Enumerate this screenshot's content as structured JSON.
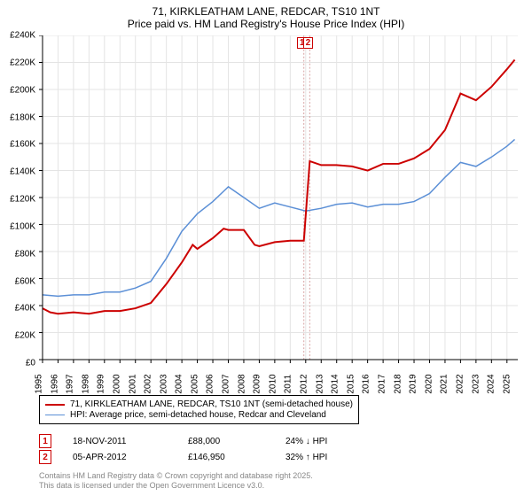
{
  "title": {
    "line1": "71, KIRKLEATHAM LANE, REDCAR, TS10 1NT",
    "line2": "Price paid vs. HM Land Registry's House Price Index (HPI)"
  },
  "chart": {
    "type": "line",
    "background_color": "#ffffff",
    "grid_color": "#e4e4e4",
    "axis_color": "#000000",
    "tick_fontsize": 10,
    "ylim": [
      0,
      240000
    ],
    "ytick_step": 20000,
    "ytick_format_prefix": "£",
    "ytick_format_suffix": "K",
    "xlim": [
      1995,
      2025.7
    ],
    "xticks": [
      1995,
      1996,
      1997,
      1998,
      1999,
      2000,
      2001,
      2002,
      2003,
      2004,
      2005,
      2006,
      2007,
      2008,
      2009,
      2010,
      2011,
      2012,
      2013,
      2014,
      2015,
      2016,
      2017,
      2018,
      2019,
      2020,
      2021,
      2022,
      2023,
      2024,
      2025
    ],
    "sale_marker_color": "#cc0000",
    "sale_marker_line_color": "#d6a0a0",
    "sale_marker_dash": "2,2",
    "series": [
      {
        "name": "price_paid",
        "legend": "71, KIRKLEATHAM LANE, REDCAR, TS10 1NT (semi-detached house)",
        "color": "#cc0000",
        "line_width": 2,
        "x": [
          1995,
          1995.5,
          1996,
          1997,
          1998,
          1999,
          2000,
          2001,
          2002,
          2003,
          2004,
          2004.7,
          2005,
          2006,
          2006.7,
          2007,
          2008,
          2008.7,
          2009,
          2010,
          2011,
          2011.88,
          2012.26,
          2013,
          2014,
          2015,
          2016,
          2017,
          2018,
          2019,
          2020,
          2021,
          2022,
          2023,
          2024,
          2025,
          2025.5
        ],
        "y": [
          38000,
          35000,
          34000,
          35000,
          34000,
          36000,
          36000,
          38000,
          42000,
          56000,
          72000,
          85000,
          82000,
          90000,
          97000,
          96000,
          96000,
          85000,
          84000,
          87000,
          88000,
          88000,
          146950,
          144000,
          144000,
          143000,
          140000,
          145000,
          145000,
          149000,
          156000,
          170000,
          197000,
          192000,
          202000,
          215000,
          222000
        ]
      },
      {
        "name": "hpi",
        "legend": "HPI: Average price, semi-detached house, Redcar and Cleveland",
        "color": "#5b8fd6",
        "line_width": 1.5,
        "x": [
          1995,
          1996,
          1997,
          1998,
          1999,
          2000,
          2001,
          2002,
          2003,
          2004,
          2005,
          2006,
          2007,
          2008,
          2009,
          2010,
          2011,
          2012,
          2013,
          2014,
          2015,
          2016,
          2017,
          2018,
          2019,
          2020,
          2021,
          2022,
          2023,
          2024,
          2025,
          2025.5
        ],
        "y": [
          48000,
          47000,
          48000,
          48000,
          50000,
          50000,
          53000,
          58000,
          75000,
          95000,
          108000,
          117000,
          128000,
          120000,
          112000,
          116000,
          113000,
          110000,
          112000,
          115000,
          116000,
          113000,
          115000,
          115000,
          117000,
          123000,
          135000,
          146000,
          143000,
          150000,
          158000,
          163000
        ]
      }
    ],
    "sale_markers": [
      {
        "index": "1",
        "x": 2011.88
      },
      {
        "index": "2",
        "x": 2012.26
      }
    ]
  },
  "legend": {
    "items": [
      {
        "color": "#cc0000",
        "width": 2,
        "label": "71, KIRKLEATHAM LANE, REDCAR, TS10 1NT (semi-detached house)"
      },
      {
        "color": "#5b8fd6",
        "width": 1.5,
        "label": "HPI: Average price, semi-detached house, Redcar and Cleveland"
      }
    ]
  },
  "sales": [
    {
      "idx": "1",
      "date": "18-NOV-2011",
      "price": "£88,000",
      "delta": "24% ↓ HPI"
    },
    {
      "idx": "2",
      "date": "05-APR-2012",
      "price": "£146,950",
      "delta": "32% ↑ HPI"
    }
  ],
  "attribution": {
    "line1": "Contains HM Land Registry data © Crown copyright and database right 2025.",
    "line2": "This data is licensed under the Open Government Licence v3.0."
  }
}
